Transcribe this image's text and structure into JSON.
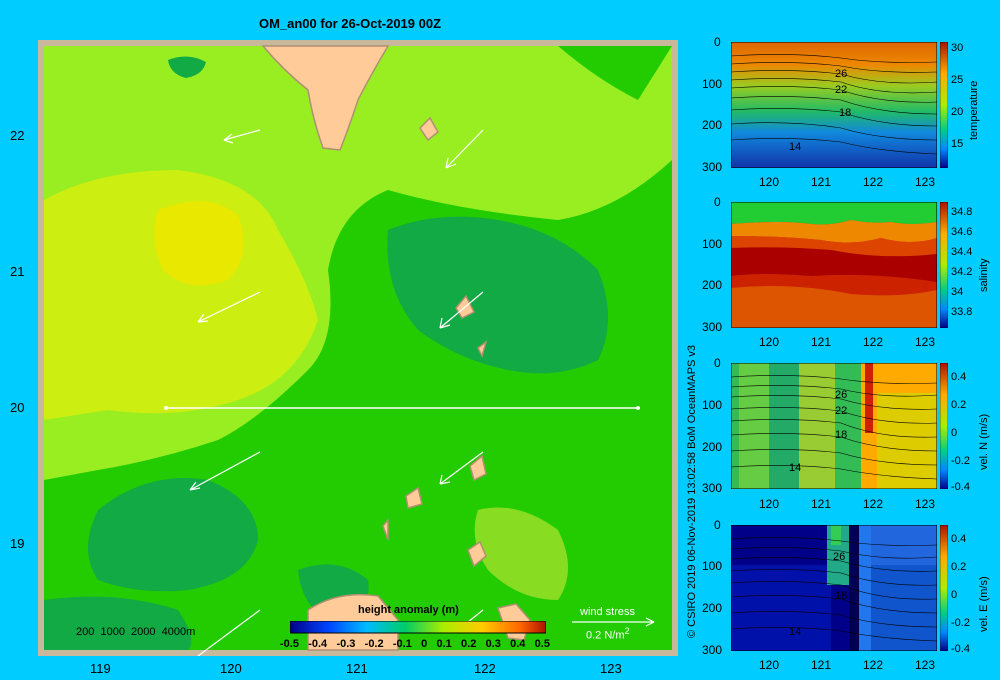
{
  "title": "OM_an00 for 26-Oct-2019 00Z",
  "map": {
    "lat_ticks": [
      "22",
      "21",
      "20",
      "19"
    ],
    "lon_ticks": [
      "119",
      "120",
      "121",
      "122",
      "123"
    ],
    "depth_legend": "200  1000  2000  4000m",
    "colorbar": {
      "title": "height anomaly (m)",
      "ticks": [
        "-0.5",
        "-0.4",
        "-0.3",
        "-0.2",
        "-0.1",
        "0",
        "0.1",
        "0.2",
        "0.3",
        "0.4",
        "0.5"
      ]
    },
    "wind_legend": {
      "label": "wind stress",
      "value": "0.2 N/m",
      "sup": "2"
    }
  },
  "credit": "© CSIRO 2019  06-Nov-2019 13:02:58 BoM OceanMAPS v3",
  "panels": [
    {
      "id": "temperature",
      "label": "temperature",
      "depth_ticks": [
        "0",
        "100",
        "200",
        "300"
      ],
      "lon_ticks": [
        "120",
        "121",
        "122",
        "123"
      ],
      "cb_ticks": [
        "30",
        "25",
        "20",
        "15"
      ],
      "contour_labels": [
        "26",
        "22",
        "18",
        "14"
      ]
    },
    {
      "id": "salinity",
      "label": "salinity",
      "depth_ticks": [
        "0",
        "100",
        "200",
        "300"
      ],
      "lon_ticks": [
        "120",
        "121",
        "122",
        "123"
      ],
      "cb_ticks": [
        "34.8",
        "34.6",
        "34.4",
        "34.2",
        "34",
        "33.8"
      ],
      "contour_labels": []
    },
    {
      "id": "vel-n",
      "label": "vel. N (m/s)",
      "depth_ticks": [
        "0",
        "100",
        "200",
        "300"
      ],
      "lon_ticks": [
        "120",
        "121",
        "122",
        "123"
      ],
      "cb_ticks": [
        "0.4",
        "0.2",
        "0",
        "-0.2",
        "-0.4"
      ],
      "contour_labels": [
        "26",
        "22",
        "18",
        "14"
      ]
    },
    {
      "id": "vel-e",
      "label": "vel. E (m/s)",
      "depth_ticks": [
        "0",
        "100",
        "200",
        "300"
      ],
      "lon_ticks": [
        "120",
        "121",
        "122",
        "123"
      ],
      "cb_ticks": [
        "0.4",
        "0.2",
        "0",
        "-0.2",
        "-0.4"
      ],
      "contour_labels": [
        "26",
        "18",
        "14"
      ]
    }
  ]
}
